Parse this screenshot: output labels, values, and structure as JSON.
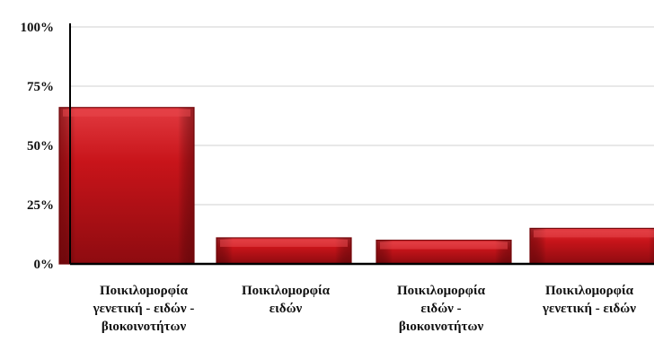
{
  "chart_data": {
    "type": "bar",
    "title": "",
    "xlabel": "",
    "ylabel": "",
    "ylim": [
      0,
      100
    ],
    "yticks": [
      {
        "value": 0,
        "label": "0%"
      },
      {
        "value": 25,
        "label": "25%"
      },
      {
        "value": 50,
        "label": "50%"
      },
      {
        "value": 75,
        "label": "75%"
      },
      {
        "value": 100,
        "label": "100%"
      }
    ],
    "grid": true,
    "categories": [
      [
        "Ποικιλομορφία",
        "γενετική - ειδών -",
        "βιοκοινοτήτων"
      ],
      [
        "Ποικιλομορφία",
        "ειδών"
      ],
      [
        "Ποικιλομορφία",
        "ειδών -",
        "βιοκοινοτήτων"
      ],
      [
        "Ποικιλομορφία",
        "γενετική - ειδών"
      ]
    ],
    "values": [
      66,
      11,
      10,
      15
    ],
    "colors": {
      "bar_main": "#c8141a",
      "bar_dark": "#7a0a0e",
      "bar_light": "#e8474c",
      "grid": "#d0d0d0",
      "axis": "#000000"
    }
  }
}
